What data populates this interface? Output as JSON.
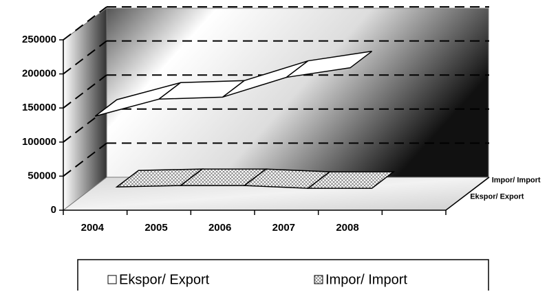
{
  "chart_data": {
    "type": "line3d",
    "categories": [
      "2004",
      "2005",
      "2006",
      "2007",
      "2008"
    ],
    "series": [
      {
        "name": "Ekspor/ Export",
        "color": "#ffffff",
        "values": [
          138000,
          163000,
          166000,
          195000,
          209000
        ]
      },
      {
        "name": "Impor/ Import",
        "color": "hatch",
        "values": [
          10000,
          12000,
          12000,
          8000,
          8000
        ]
      }
    ],
    "ylim": [
      0,
      250000
    ],
    "yticks": [
      0,
      50000,
      100000,
      150000,
      200000,
      250000
    ],
    "grid": true
  }
}
